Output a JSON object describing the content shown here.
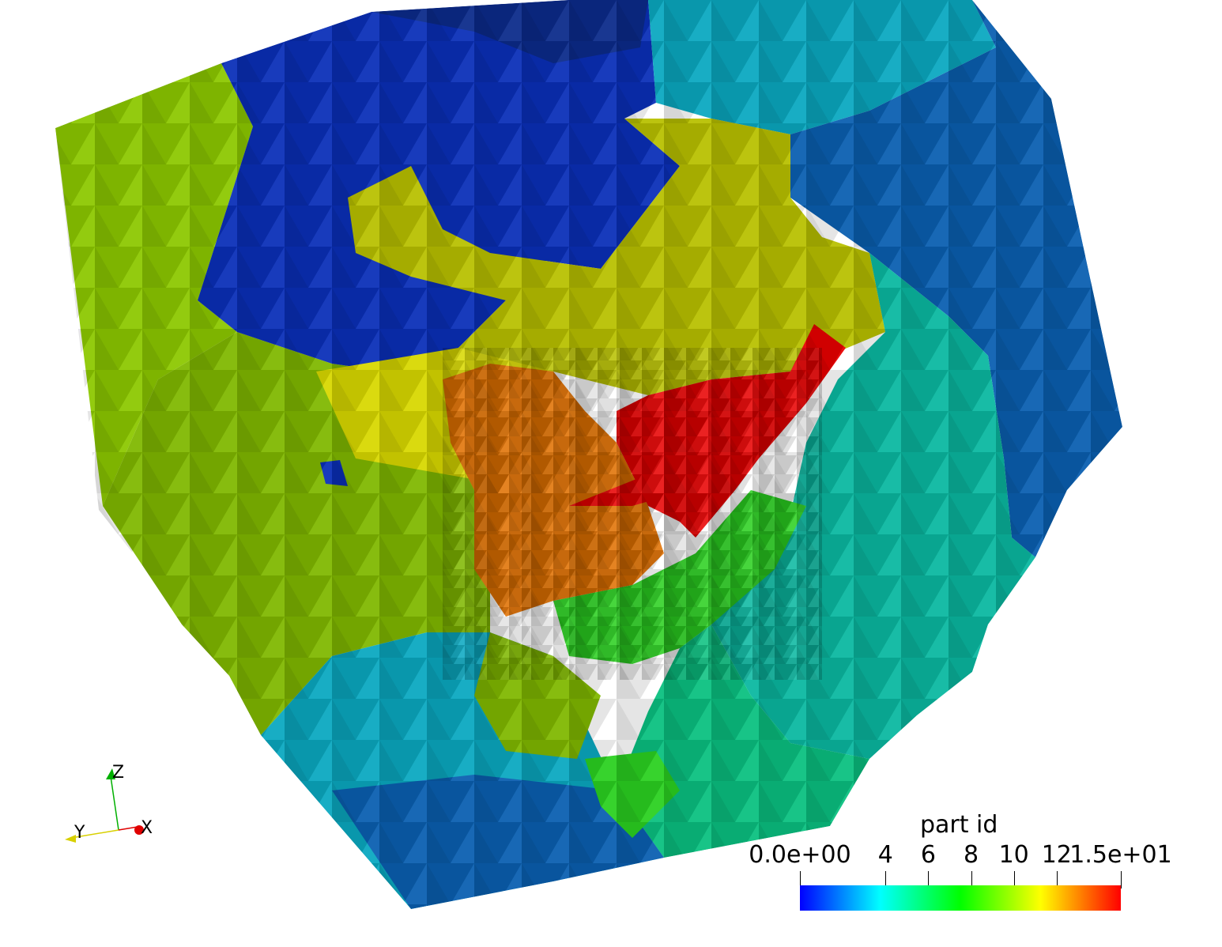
{
  "colors": {
    "background": "#ffffff",
    "deep_blue": "#0a2fb8",
    "navy_blue": "#0b2a8a",
    "steel_blue": "#0a5fb0",
    "cyan_teal": "#0aa8c0",
    "teal": "#0ab8a0",
    "sea_green": "#0ac080",
    "green": "#2ad020",
    "olive_green": "#80b800",
    "lime_green": "#8cc800",
    "olive_yellow": "#b8c000",
    "yellow": "#d8d800",
    "orange": "#e07000",
    "red": "#e80000"
  },
  "axes_widget": {
    "x_label": "X",
    "y_label": "Y",
    "z_label": "Z",
    "x_color": "#e00000",
    "y_color": "#d8d000",
    "z_color": "#00b000"
  },
  "legend": {
    "title": "part id",
    "range": [
      0,
      15
    ],
    "ticks": [
      {
        "value": 0,
        "label": "0.0e+00"
      },
      {
        "value": 4,
        "label": "4"
      },
      {
        "value": 6,
        "label": "6"
      },
      {
        "value": 8,
        "label": "8"
      },
      {
        "value": 10,
        "label": "10"
      },
      {
        "value": 12,
        "label": "12"
      },
      {
        "value": 15,
        "label": "1.5e+01"
      }
    ],
    "colormap": [
      "#0000ff",
      "#00ffff",
      "#00ff00",
      "#ffff00",
      "#ff0000"
    ]
  }
}
